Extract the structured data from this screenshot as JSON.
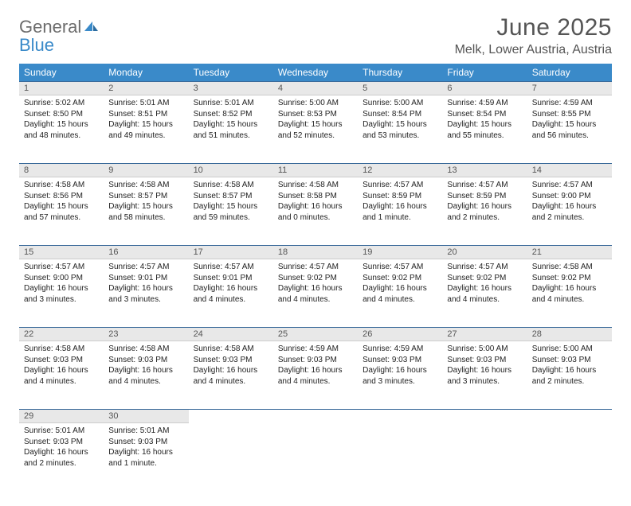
{
  "brand": {
    "line1": "General",
    "line2": "Blue",
    "color1": "#6c6c6c",
    "color2": "#3a8ac9",
    "icon_color": "#3a8ac9"
  },
  "header": {
    "title": "June 2025",
    "location": "Melk, Lower Austria, Austria"
  },
  "theme": {
    "header_bg": "#3a8ac9",
    "header_fg": "#ffffff",
    "daynum_bg": "#e8e8e8",
    "rule_color": "#3a6a9a",
    "text_color": "#222222"
  },
  "weekdays": [
    "Sunday",
    "Monday",
    "Tuesday",
    "Wednesday",
    "Thursday",
    "Friday",
    "Saturday"
  ],
  "weeks": [
    [
      {
        "num": "1",
        "sunrise": "Sunrise: 5:02 AM",
        "sunset": "Sunset: 8:50 PM",
        "daylight": "Daylight: 15 hours and 48 minutes."
      },
      {
        "num": "2",
        "sunrise": "Sunrise: 5:01 AM",
        "sunset": "Sunset: 8:51 PM",
        "daylight": "Daylight: 15 hours and 49 minutes."
      },
      {
        "num": "3",
        "sunrise": "Sunrise: 5:01 AM",
        "sunset": "Sunset: 8:52 PM",
        "daylight": "Daylight: 15 hours and 51 minutes."
      },
      {
        "num": "4",
        "sunrise": "Sunrise: 5:00 AM",
        "sunset": "Sunset: 8:53 PM",
        "daylight": "Daylight: 15 hours and 52 minutes."
      },
      {
        "num": "5",
        "sunrise": "Sunrise: 5:00 AM",
        "sunset": "Sunset: 8:54 PM",
        "daylight": "Daylight: 15 hours and 53 minutes."
      },
      {
        "num": "6",
        "sunrise": "Sunrise: 4:59 AM",
        "sunset": "Sunset: 8:54 PM",
        "daylight": "Daylight: 15 hours and 55 minutes."
      },
      {
        "num": "7",
        "sunrise": "Sunrise: 4:59 AM",
        "sunset": "Sunset: 8:55 PM",
        "daylight": "Daylight: 15 hours and 56 minutes."
      }
    ],
    [
      {
        "num": "8",
        "sunrise": "Sunrise: 4:58 AM",
        "sunset": "Sunset: 8:56 PM",
        "daylight": "Daylight: 15 hours and 57 minutes."
      },
      {
        "num": "9",
        "sunrise": "Sunrise: 4:58 AM",
        "sunset": "Sunset: 8:57 PM",
        "daylight": "Daylight: 15 hours and 58 minutes."
      },
      {
        "num": "10",
        "sunrise": "Sunrise: 4:58 AM",
        "sunset": "Sunset: 8:57 PM",
        "daylight": "Daylight: 15 hours and 59 minutes."
      },
      {
        "num": "11",
        "sunrise": "Sunrise: 4:58 AM",
        "sunset": "Sunset: 8:58 PM",
        "daylight": "Daylight: 16 hours and 0 minutes."
      },
      {
        "num": "12",
        "sunrise": "Sunrise: 4:57 AM",
        "sunset": "Sunset: 8:59 PM",
        "daylight": "Daylight: 16 hours and 1 minute."
      },
      {
        "num": "13",
        "sunrise": "Sunrise: 4:57 AM",
        "sunset": "Sunset: 8:59 PM",
        "daylight": "Daylight: 16 hours and 2 minutes."
      },
      {
        "num": "14",
        "sunrise": "Sunrise: 4:57 AM",
        "sunset": "Sunset: 9:00 PM",
        "daylight": "Daylight: 16 hours and 2 minutes."
      }
    ],
    [
      {
        "num": "15",
        "sunrise": "Sunrise: 4:57 AM",
        "sunset": "Sunset: 9:00 PM",
        "daylight": "Daylight: 16 hours and 3 minutes."
      },
      {
        "num": "16",
        "sunrise": "Sunrise: 4:57 AM",
        "sunset": "Sunset: 9:01 PM",
        "daylight": "Daylight: 16 hours and 3 minutes."
      },
      {
        "num": "17",
        "sunrise": "Sunrise: 4:57 AM",
        "sunset": "Sunset: 9:01 PM",
        "daylight": "Daylight: 16 hours and 4 minutes."
      },
      {
        "num": "18",
        "sunrise": "Sunrise: 4:57 AM",
        "sunset": "Sunset: 9:02 PM",
        "daylight": "Daylight: 16 hours and 4 minutes."
      },
      {
        "num": "19",
        "sunrise": "Sunrise: 4:57 AM",
        "sunset": "Sunset: 9:02 PM",
        "daylight": "Daylight: 16 hours and 4 minutes."
      },
      {
        "num": "20",
        "sunrise": "Sunrise: 4:57 AM",
        "sunset": "Sunset: 9:02 PM",
        "daylight": "Daylight: 16 hours and 4 minutes."
      },
      {
        "num": "21",
        "sunrise": "Sunrise: 4:58 AM",
        "sunset": "Sunset: 9:02 PM",
        "daylight": "Daylight: 16 hours and 4 minutes."
      }
    ],
    [
      {
        "num": "22",
        "sunrise": "Sunrise: 4:58 AM",
        "sunset": "Sunset: 9:03 PM",
        "daylight": "Daylight: 16 hours and 4 minutes."
      },
      {
        "num": "23",
        "sunrise": "Sunrise: 4:58 AM",
        "sunset": "Sunset: 9:03 PM",
        "daylight": "Daylight: 16 hours and 4 minutes."
      },
      {
        "num": "24",
        "sunrise": "Sunrise: 4:58 AM",
        "sunset": "Sunset: 9:03 PM",
        "daylight": "Daylight: 16 hours and 4 minutes."
      },
      {
        "num": "25",
        "sunrise": "Sunrise: 4:59 AM",
        "sunset": "Sunset: 9:03 PM",
        "daylight": "Daylight: 16 hours and 4 minutes."
      },
      {
        "num": "26",
        "sunrise": "Sunrise: 4:59 AM",
        "sunset": "Sunset: 9:03 PM",
        "daylight": "Daylight: 16 hours and 3 minutes."
      },
      {
        "num": "27",
        "sunrise": "Sunrise: 5:00 AM",
        "sunset": "Sunset: 9:03 PM",
        "daylight": "Daylight: 16 hours and 3 minutes."
      },
      {
        "num": "28",
        "sunrise": "Sunrise: 5:00 AM",
        "sunset": "Sunset: 9:03 PM",
        "daylight": "Daylight: 16 hours and 2 minutes."
      }
    ],
    [
      {
        "num": "29",
        "sunrise": "Sunrise: 5:01 AM",
        "sunset": "Sunset: 9:03 PM",
        "daylight": "Daylight: 16 hours and 2 minutes."
      },
      {
        "num": "30",
        "sunrise": "Sunrise: 5:01 AM",
        "sunset": "Sunset: 9:03 PM",
        "daylight": "Daylight: 16 hours and 1 minute."
      },
      null,
      null,
      null,
      null,
      null
    ]
  ]
}
